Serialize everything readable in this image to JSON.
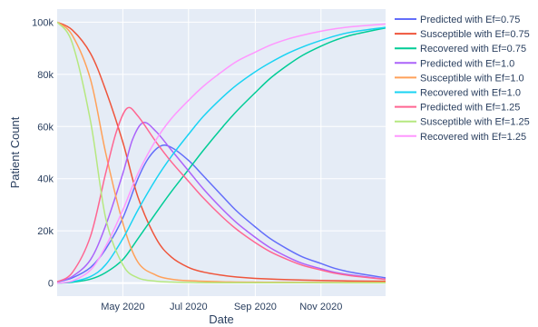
{
  "chart_data": {
    "type": "line",
    "title": "",
    "xlabel": "Date",
    "ylabel": "Patient Count",
    "grid": true,
    "legend_position": "right",
    "plot_background": "#E5ECF6",
    "x_ticks": [
      "2020-05-01",
      "2020-07-01",
      "2020-09-01",
      "2020-11-01"
    ],
    "x_tick_labels": [
      "May 2020",
      "Jul 2020",
      "Sep 2020",
      "Nov 2020"
    ],
    "xlim": [
      "2020-03-01",
      "2020-12-31"
    ],
    "y_ticks": [
      0,
      20000,
      40000,
      60000,
      80000,
      100000
    ],
    "y_tick_labels": [
      "0",
      "20k",
      "40k",
      "60k",
      "80k",
      "100k"
    ],
    "ylim": [
      -5000,
      105000
    ],
    "series": [
      {
        "name": "Predicted with Ef=0.75",
        "color": "#636EFA",
        "x": [
          "2020-03-01",
          "2020-03-15",
          "2020-04-01",
          "2020-04-15",
          "2020-05-01",
          "2020-05-15",
          "2020-05-25",
          "2020-06-05",
          "2020-06-15",
          "2020-07-01",
          "2020-07-15",
          "2020-08-01",
          "2020-08-15",
          "2020-09-01",
          "2020-09-15",
          "2020-10-01",
          "2020-10-15",
          "2020-11-01",
          "2020-11-15",
          "2020-12-01",
          "2020-12-31"
        ],
        "y": [
          500,
          2000,
          6000,
          13000,
          25000,
          40000,
          48000,
          52500,
          52000,
          47000,
          41000,
          33500,
          27500,
          21500,
          17000,
          13000,
          10000,
          7500,
          5500,
          4000,
          2000
        ]
      },
      {
        "name": "Susceptible with Ef=0.75",
        "color": "#EF553B",
        "x": [
          "2020-03-01",
          "2020-03-15",
          "2020-04-01",
          "2020-04-15",
          "2020-05-01",
          "2020-05-15",
          "2020-06-01",
          "2020-06-15",
          "2020-07-01",
          "2020-07-15",
          "2020-08-01",
          "2020-08-15",
          "2020-09-01",
          "2020-10-01",
          "2020-11-01",
          "2020-12-01",
          "2020-12-31"
        ],
        "y": [
          100000,
          97000,
          88000,
          74000,
          54000,
          33000,
          17000,
          10000,
          6000,
          4200,
          3000,
          2300,
          1800,
          1300,
          1000,
          800,
          700
        ]
      },
      {
        "name": "Recovered with Ef=0.75",
        "color": "#00CC96",
        "x": [
          "2020-03-01",
          "2020-03-15",
          "2020-04-01",
          "2020-04-15",
          "2020-05-01",
          "2020-05-15",
          "2020-06-01",
          "2020-06-15",
          "2020-07-01",
          "2020-07-15",
          "2020-08-01",
          "2020-08-15",
          "2020-09-01",
          "2020-09-15",
          "2020-10-01",
          "2020-10-15",
          "2020-11-01",
          "2020-11-15",
          "2020-12-01",
          "2020-12-31"
        ],
        "y": [
          0,
          300,
          1500,
          4000,
          9000,
          17000,
          27000,
          35000,
          43500,
          51000,
          59500,
          66000,
          73000,
          78500,
          83500,
          87300,
          90800,
          93200,
          95200,
          97800
        ]
      },
      {
        "name": "Predicted with Ef=1.0",
        "color": "#AB63FA",
        "x": [
          "2020-03-01",
          "2020-03-15",
          "2020-04-01",
          "2020-04-15",
          "2020-05-01",
          "2020-05-10",
          "2020-05-20",
          "2020-06-01",
          "2020-06-15",
          "2020-07-01",
          "2020-07-15",
          "2020-08-01",
          "2020-08-15",
          "2020-09-01",
          "2020-09-15",
          "2020-10-01",
          "2020-10-15",
          "2020-11-01",
          "2020-11-15",
          "2020-12-01",
          "2020-12-31"
        ],
        "y": [
          500,
          2500,
          9000,
          22000,
          42000,
          55000,
          61500,
          58000,
          51000,
          43000,
          36000,
          28500,
          23000,
          17500,
          13500,
          10000,
          7500,
          5500,
          4000,
          3000,
          1500
        ]
      },
      {
        "name": "Susceptible with Ef=1.0",
        "color": "#FFA15A",
        "x": [
          "2020-03-01",
          "2020-03-15",
          "2020-04-01",
          "2020-04-15",
          "2020-05-01",
          "2020-05-15",
          "2020-06-01",
          "2020-06-15",
          "2020-07-01",
          "2020-08-01",
          "2020-09-01",
          "2020-10-01",
          "2020-12-31"
        ],
        "y": [
          100000,
          95000,
          78000,
          50000,
          23000,
          8000,
          3000,
          1500,
          900,
          500,
          350,
          300,
          250
        ]
      },
      {
        "name": "Recovered with Ef=1.0",
        "color": "#19D3F3",
        "x": [
          "2020-03-01",
          "2020-03-15",
          "2020-04-01",
          "2020-04-15",
          "2020-05-01",
          "2020-05-15",
          "2020-06-01",
          "2020-06-15",
          "2020-07-01",
          "2020-07-15",
          "2020-08-01",
          "2020-08-15",
          "2020-09-01",
          "2020-09-15",
          "2020-10-01",
          "2020-10-15",
          "2020-11-01",
          "2020-11-15",
          "2020-12-01",
          "2020-12-31"
        ],
        "y": [
          0,
          500,
          2500,
          7000,
          17000,
          28000,
          40000,
          48500,
          57000,
          64000,
          71000,
          76000,
          81000,
          84500,
          88000,
          90500,
          93000,
          94800,
          96300,
          98000
        ]
      },
      {
        "name": "Predicted with Ef=1.25",
        "color": "#FF6692",
        "x": [
          "2020-03-01",
          "2020-03-15",
          "2020-04-01",
          "2020-04-15",
          "2020-04-25",
          "2020-05-05",
          "2020-05-15",
          "2020-06-01",
          "2020-06-15",
          "2020-07-01",
          "2020-07-15",
          "2020-08-01",
          "2020-08-15",
          "2020-09-01",
          "2020-09-15",
          "2020-10-01",
          "2020-10-15",
          "2020-11-01",
          "2020-11-15",
          "2020-12-01",
          "2020-12-31"
        ],
        "y": [
          500,
          4000,
          18000,
          42000,
          58000,
          67000,
          64000,
          54000,
          46500,
          39000,
          32500,
          25500,
          20500,
          15500,
          12000,
          9000,
          6800,
          5000,
          3700,
          2700,
          1400
        ]
      },
      {
        "name": "Susceptible with Ef=1.25",
        "color": "#B6E880",
        "x": [
          "2020-03-01",
          "2020-03-15",
          "2020-04-01",
          "2020-04-15",
          "2020-05-01",
          "2020-05-15",
          "2020-06-01",
          "2020-06-15",
          "2020-07-01",
          "2020-08-01",
          "2020-12-31"
        ],
        "y": [
          100000,
          92000,
          62000,
          25000,
          7000,
          2000,
          700,
          400,
          250,
          150,
          100
        ]
      },
      {
        "name": "Recovered with Ef=1.25",
        "color": "#FF97FF",
        "x": [
          "2020-03-01",
          "2020-03-15",
          "2020-04-01",
          "2020-04-15",
          "2020-05-01",
          "2020-05-15",
          "2020-06-01",
          "2020-06-15",
          "2020-07-01",
          "2020-07-15",
          "2020-08-01",
          "2020-08-15",
          "2020-09-01",
          "2020-09-15",
          "2020-10-01",
          "2020-10-15",
          "2020-11-01",
          "2020-11-15",
          "2020-12-01",
          "2020-12-31"
        ],
        "y": [
          0,
          800,
          5000,
          14000,
          28000,
          42000,
          55000,
          63000,
          70000,
          75500,
          81000,
          85000,
          88500,
          91200,
          93500,
          95000,
          96500,
          97500,
          98300,
          99300
        ]
      }
    ]
  }
}
